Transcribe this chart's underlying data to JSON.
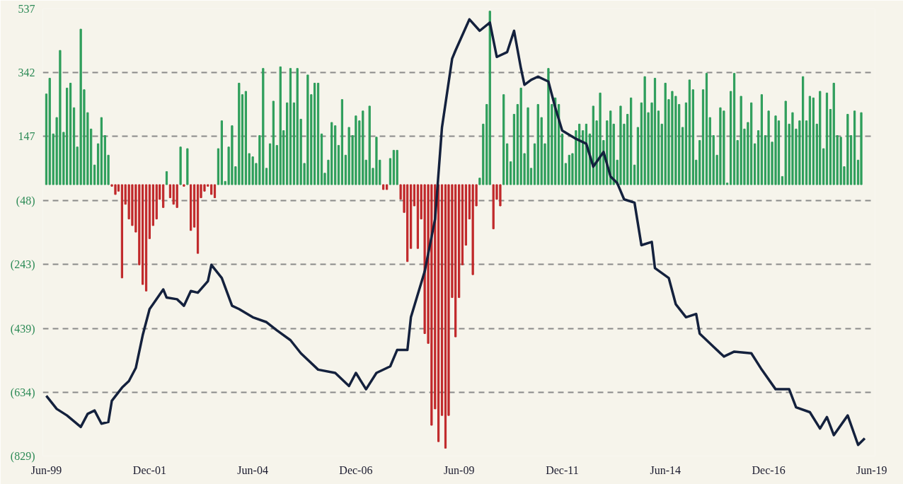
{
  "chart_data": {
    "type": "bar",
    "x": [
      "1999-06",
      "1999-07",
      "1999-08",
      "1999-09",
      "1999-10",
      "1999-11",
      "1999-12",
      "2000-01",
      "2000-02",
      "2000-03",
      "2000-04",
      "2000-05",
      "2000-06",
      "2000-07",
      "2000-08",
      "2000-09",
      "2000-10",
      "2000-11",
      "2000-12",
      "2001-01",
      "2001-02",
      "2001-03",
      "2001-04",
      "2001-05",
      "2001-06",
      "2001-07",
      "2001-08",
      "2001-09",
      "2001-10",
      "2001-11",
      "2001-12",
      "2002-01",
      "2002-02",
      "2002-03",
      "2002-04",
      "2002-05",
      "2002-06",
      "2002-07",
      "2002-08",
      "2002-09",
      "2002-10",
      "2002-11",
      "2002-12",
      "2003-01",
      "2003-02",
      "2003-03",
      "2003-04",
      "2003-05",
      "2003-06",
      "2003-07",
      "2003-08",
      "2003-09",
      "2003-10",
      "2003-11",
      "2003-12",
      "2004-01",
      "2004-02",
      "2004-03",
      "2004-04",
      "2004-05",
      "2004-06",
      "2004-07",
      "2004-08",
      "2004-09",
      "2004-10",
      "2004-11",
      "2004-12",
      "2005-01",
      "2005-02",
      "2005-03",
      "2005-04",
      "2005-05",
      "2005-06",
      "2005-07",
      "2005-08",
      "2005-09",
      "2005-10",
      "2005-11",
      "2005-12",
      "2006-01",
      "2006-02",
      "2006-03",
      "2006-04",
      "2006-05",
      "2006-06",
      "2006-07",
      "2006-08",
      "2006-09",
      "2006-10",
      "2006-11",
      "2006-12",
      "2007-01",
      "2007-02",
      "2007-03",
      "2007-04",
      "2007-05",
      "2007-06",
      "2007-07",
      "2007-08",
      "2007-09",
      "2007-10",
      "2007-11",
      "2007-12",
      "2008-01",
      "2008-02",
      "2008-03",
      "2008-04",
      "2008-05",
      "2008-06",
      "2008-07",
      "2008-08",
      "2008-09",
      "2008-10",
      "2008-11",
      "2008-12",
      "2009-01",
      "2009-02",
      "2009-03",
      "2009-04",
      "2009-05",
      "2009-06",
      "2009-07",
      "2009-08",
      "2009-09",
      "2009-10",
      "2009-11",
      "2009-12",
      "2010-01",
      "2010-02",
      "2010-03",
      "2010-04",
      "2010-05",
      "2010-06",
      "2010-07",
      "2010-08",
      "2010-09",
      "2010-10",
      "2010-11",
      "2010-12",
      "2011-01",
      "2011-02",
      "2011-03",
      "2011-04",
      "2011-05",
      "2011-06",
      "2011-07",
      "2011-08",
      "2011-09",
      "2011-10",
      "2011-11",
      "2011-12",
      "2012-01",
      "2012-02",
      "2012-03",
      "2012-04",
      "2012-05",
      "2012-06",
      "2012-07",
      "2012-08",
      "2012-09",
      "2012-10",
      "2012-11",
      "2012-12",
      "2013-01",
      "2013-02",
      "2013-03",
      "2013-04",
      "2013-05",
      "2013-06",
      "2013-07",
      "2013-08",
      "2013-09",
      "2013-10",
      "2013-11",
      "2013-12",
      "2014-01",
      "2014-02",
      "2014-03",
      "2014-04",
      "2014-05",
      "2014-06",
      "2014-07",
      "2014-08",
      "2014-09",
      "2014-10",
      "2014-11",
      "2014-12",
      "2015-01",
      "2015-02",
      "2015-03",
      "2015-04",
      "2015-05",
      "2015-06",
      "2015-07",
      "2015-08",
      "2015-09",
      "2015-10",
      "2015-11",
      "2015-12",
      "2016-01",
      "2016-02",
      "2016-03",
      "2016-04",
      "2016-05",
      "2016-06",
      "2016-07",
      "2016-08",
      "2016-09",
      "2016-10",
      "2016-11",
      "2016-12",
      "2017-01",
      "2017-02",
      "2017-03",
      "2017-04",
      "2017-05",
      "2017-06",
      "2017-07",
      "2017-08",
      "2017-09",
      "2017-10",
      "2017-11",
      "2017-12",
      "2018-01",
      "2018-02",
      "2018-03",
      "2018-04",
      "2018-05",
      "2018-06",
      "2018-07",
      "2018-08",
      "2018-09",
      "2018-10",
      "2018-11",
      "2018-12",
      "2019-01",
      "2019-02",
      "2019-03"
    ],
    "series": [
      {
        "values": [
          277,
          325,
          155,
          205,
          410,
          160,
          295,
          310,
          235,
          115,
          475,
          290,
          220,
          170,
          60,
          125,
          205,
          150,
          90,
          -5,
          -30,
          -20,
          -285,
          -60,
          -105,
          -125,
          -145,
          -245,
          -305,
          -325,
          -165,
          -125,
          -105,
          -45,
          -70,
          40,
          -40,
          -60,
          -70,
          115,
          -5,
          110,
          -140,
          -130,
          -210,
          -40,
          -20,
          -5,
          -30,
          -40,
          110,
          195,
          10,
          115,
          180,
          55,
          310,
          275,
          285,
          95,
          85,
          65,
          150,
          355,
          50,
          125,
          255,
          120,
          360,
          165,
          250,
          355,
          250,
          355,
          200,
          65,
          335,
          275,
          310,
          310,
          155,
          35,
          75,
          190,
          180,
          120,
          260,
          90,
          175,
          150,
          210,
          195,
          225,
          75,
          240,
          50,
          145,
          75,
          -15,
          -15,
          80,
          105,
          105,
          -45,
          -85,
          -235,
          -195,
          -65,
          -195,
          -105,
          -455,
          -485,
          -735,
          -685,
          -785,
          -705,
          -805,
          -705,
          -345,
          -465,
          -345,
          -245,
          -185,
          -105,
          -275,
          -65,
          20,
          185,
          245,
          530,
          -135,
          -45,
          -65,
          275,
          125,
          70,
          215,
          245,
          295,
          95,
          235,
          50,
          125,
          245,
          205,
          125,
          355,
          245,
          265,
          245,
          155,
          65,
          90,
          95,
          165,
          185,
          165,
          185,
          155,
          240,
          195,
          280,
          135,
          195,
          225,
          185,
          75,
          240,
          185,
          215,
          265,
          60,
          175,
          250,
          330,
          220,
          250,
          325,
          225,
          185,
          310,
          260,
          285,
          270,
          245,
          175,
          250,
          320,
          290,
          75,
          135,
          290,
          340,
          205,
          150,
          90,
          235,
          225,
          5,
          285,
          340,
          135,
          270,
          170,
          190,
          250,
          125,
          165,
          275,
          150,
          225,
          130,
          210,
          195,
          25,
          255,
          185,
          220,
          170,
          195,
          330,
          195,
          270,
          265,
          185,
          285,
          110,
          280,
          230,
          310,
          150,
          145,
          55,
          215,
          150,
          225,
          75,
          220
        ],
        "colors": [
          "#2e9e5b",
          "#2e9e5b",
          "#2e9e5b",
          "#2e9e5b",
          "#2e9e5b",
          "#2e9e5b",
          "#2e9e5b",
          "#2e9e5b",
          "#2e9e5b",
          "#2e9e5b",
          "#2e9e5b",
          "#2e9e5b",
          "#2e9e5b",
          "#2e9e5b",
          "#2e9e5b",
          "#2e9e5b",
          "#2e9e5b",
          "#2e9e5b",
          "#2e9e5b",
          "#c0282a",
          "#c0282a",
          "#c0282a",
          "#c0282a",
          "#c0282a",
          "#c0282a",
          "#c0282a",
          "#c0282a",
          "#c0282a",
          "#c0282a",
          "#c0282a",
          "#c0282a",
          "#c0282a",
          "#c0282a",
          "#c0282a",
          "#c0282a",
          "#2e9e5b",
          "#c0282a",
          "#c0282a",
          "#c0282a",
          "#2e9e5b",
          "#c0282a",
          "#2e9e5b",
          "#c0282a",
          "#c0282a",
          "#c0282a",
          "#c0282a",
          "#c0282a",
          "#c0282a",
          "#c0282a",
          "#c0282a",
          "#2e9e5b",
          "#2e9e5b",
          "#2e9e5b",
          "#2e9e5b",
          "#2e9e5b",
          "#2e9e5b",
          "#2e9e5b",
          "#2e9e5b",
          "#2e9e5b",
          "#2e9e5b",
          "#2e9e5b",
          "#2e9e5b",
          "#2e9e5b",
          "#2e9e5b",
          "#2e9e5b",
          "#2e9e5b",
          "#2e9e5b",
          "#2e9e5b",
          "#2e9e5b",
          "#2e9e5b",
          "#2e9e5b",
          "#2e9e5b",
          "#2e9e5b",
          "#2e9e5b",
          "#2e9e5b",
          "#2e9e5b",
          "#2e9e5b",
          "#2e9e5b",
          "#2e9e5b",
          "#2e9e5b",
          "#2e9e5b",
          "#2e9e5b",
          "#2e9e5b",
          "#2e9e5b",
          "#2e9e5b",
          "#2e9e5b",
          "#2e9e5b",
          "#2e9e5b",
          "#2e9e5b",
          "#2e9e5b",
          "#2e9e5b",
          "#2e9e5b",
          "#2e9e5b",
          "#2e9e5b",
          "#2e9e5b",
          "#2e9e5b",
          "#2e9e5b",
          "#2e9e5b",
          "#c0282a",
          "#c0282a",
          "#2e9e5b",
          "#2e9e5b",
          "#2e9e5b",
          "#c0282a",
          "#c0282a",
          "#c0282a",
          "#c0282a",
          "#c0282a",
          "#c0282a",
          "#c0282a",
          "#c0282a",
          "#c0282a",
          "#c0282a",
          "#c0282a",
          "#c0282a",
          "#c0282a",
          "#c0282a",
          "#c0282a",
          "#c0282a",
          "#c0282a",
          "#c0282a",
          "#c0282a",
          "#c0282a",
          "#c0282a",
          "#c0282a",
          "#c0282a",
          "#2e9e5b",
          "#2e9e5b",
          "#2e9e5b",
          "#2e9e5b",
          "#c0282a",
          "#c0282a",
          "#c0282a",
          "#2e9e5b",
          "#2e9e5b",
          "#2e9e5b",
          "#2e9e5b",
          "#2e9e5b",
          "#2e9e5b",
          "#2e9e5b",
          "#2e9e5b",
          "#2e9e5b",
          "#2e9e5b",
          "#2e9e5b",
          "#2e9e5b",
          "#2e9e5b",
          "#2e9e5b",
          "#2e9e5b",
          "#2e9e5b",
          "#2e9e5b",
          "#2e9e5b",
          "#2e9e5b",
          "#2e9e5b",
          "#2e9e5b",
          "#2e9e5b",
          "#2e9e5b",
          "#2e9e5b",
          "#2e9e5b",
          "#2e9e5b",
          "#2e9e5b",
          "#2e9e5b",
          "#2e9e5b",
          "#2e9e5b",
          "#2e9e5b",
          "#2e9e5b",
          "#2e9e5b",
          "#2e9e5b",
          "#2e9e5b",
          "#2e9e5b",
          "#2e9e5b",
          "#2e9e5b",
          "#2e9e5b",
          "#2e9e5b",
          "#2e9e5b",
          "#2e9e5b",
          "#2e9e5b",
          "#2e9e5b",
          "#2e9e5b",
          "#2e9e5b",
          "#2e9e5b",
          "#2e9e5b",
          "#2e9e5b",
          "#2e9e5b",
          "#2e9e5b",
          "#2e9e5b",
          "#2e9e5b",
          "#2e9e5b",
          "#2e9e5b",
          "#2e9e5b",
          "#2e9e5b",
          "#2e9e5b",
          "#2e9e5b",
          "#2e9e5b",
          "#2e9e5b",
          "#2e9e5b",
          "#2e9e5b",
          "#2e9e5b",
          "#2e9e5b",
          "#2e9e5b",
          "#2e9e5b",
          "#2e9e5b",
          "#2e9e5b",
          "#2e9e5b",
          "#2e9e5b",
          "#2e9e5b",
          "#2e9e5b",
          "#2e9e5b",
          "#2e9e5b",
          "#2e9e5b",
          "#2e9e5b",
          "#2e9e5b",
          "#2e9e5b",
          "#2e9e5b",
          "#2e9e5b",
          "#2e9e5b",
          "#2e9e5b",
          "#2e9e5b",
          "#2e9e5b",
          "#2e9e5b",
          "#2e9e5b",
          "#2e9e5b",
          "#2e9e5b",
          "#2e9e5b",
          "#2e9e5b",
          "#2e9e5b",
          "#2e9e5b",
          "#2e9e5b",
          "#2e9e5b",
          "#2e9e5b",
          "#2e9e5b",
          "#2e9e5b",
          "#2e9e5b",
          "#2e9e5b",
          "#2e9e5b",
          "#2e9e5b",
          "#2e9e5b",
          "#2e9e5b",
          "#2e9e5b"
        ]
      },
      {
        "type": "line",
        "color": "#14213d",
        "x": [
          "1999-06",
          "1999-09",
          "1999-12",
          "2000-04",
          "2000-06",
          "2000-08",
          "2000-10",
          "2000-12",
          "2001-01",
          "2001-04",
          "2001-06",
          "2001-08",
          "2001-10",
          "2001-12",
          "2002-01",
          "2002-04",
          "2002-05",
          "2002-08",
          "2002-10",
          "2002-12",
          "2003-02",
          "2003-05",
          "2003-06",
          "2003-09",
          "2003-12",
          "2004-02",
          "2004-06",
          "2004-10",
          "2005-01",
          "2005-05",
          "2005-08",
          "2006-01",
          "2006-06",
          "2006-10",
          "2006-12",
          "2007-03",
          "2007-06",
          "2007-10",
          "2007-12",
          "2008-03",
          "2008-04",
          "2008-08",
          "2008-11",
          "2009-01",
          "2009-04",
          "2009-05",
          "2009-09",
          "2009-12",
          "2010-03",
          "2010-05",
          "2010-08",
          "2010-10",
          "2010-12",
          "2011-01",
          "2011-03",
          "2011-05",
          "2011-08",
          "2011-10",
          "2011-12",
          "2012-04",
          "2012-07",
          "2012-09",
          "2012-12",
          "2013-02",
          "2013-04",
          "2013-06",
          "2013-09",
          "2013-11",
          "2014-02",
          "2014-03",
          "2014-07",
          "2014-09",
          "2014-12",
          "2015-03",
          "2015-04",
          "2015-08",
          "2015-11",
          "2016-02",
          "2016-07",
          "2016-10",
          "2017-02",
          "2017-06",
          "2017-08",
          "2017-12",
          "2018-03",
          "2018-05",
          "2018-07",
          "2018-11",
          "2019-02",
          "2019-04"
        ],
        "values": [
          -645,
          -685,
          -705,
          -740,
          -700,
          -690,
          -730,
          -725,
          -660,
          -620,
          -600,
          -560,
          -460,
          -380,
          -365,
          -320,
          -345,
          -350,
          -370,
          -325,
          -330,
          -295,
          -245,
          -285,
          -370,
          -380,
          -405,
          -420,
          -445,
          -475,
          -515,
          -565,
          -575,
          -615,
          -575,
          -625,
          -575,
          -555,
          -505,
          -505,
          -405,
          -265,
          -105,
          175,
          385,
          410,
          505,
          470,
          495,
          390,
          405,
          470,
          355,
          305,
          320,
          330,
          315,
          235,
          165,
          140,
          125,
          55,
          100,
          25,
          5,
          -45,
          -55,
          -185,
          -175,
          -255,
          -285,
          -365,
          -405,
          -395,
          -455,
          -495,
          -525,
          -510,
          -515,
          -565,
          -625,
          -625,
          -680,
          -695,
          -745,
          -710,
          -765,
          -705,
          -795,
          -775
        ]
      }
    ],
    "xlim": [
      "1999-05",
      "2019-07"
    ],
    "xticks": [
      {
        "value": "1999-06",
        "label": "Jun-99"
      },
      {
        "value": "2001-12",
        "label": "Dec-01"
      },
      {
        "value": "2004-06",
        "label": "Jun-04"
      },
      {
        "value": "2006-12",
        "label": "Dec-06"
      },
      {
        "value": "2009-06",
        "label": "Jun-09"
      },
      {
        "value": "2011-12",
        "label": "Dec-11"
      },
      {
        "value": "2014-06",
        "label": "Jun-14"
      },
      {
        "value": "2016-12",
        "label": "Dec-16"
      },
      {
        "value": "2019-06",
        "label": "Jun-19"
      }
    ],
    "ylim": [
      -829,
      537
    ],
    "yticks": [
      537,
      342,
      147,
      {
        "value": -48,
        "label": "(48)"
      },
      {
        "value": -243,
        "label": "(243)"
      },
      {
        "value": -439,
        "label": "(439)"
      },
      {
        "value": -634,
        "label": "(634)"
      },
      {
        "value": -829,
        "label": "(829)"
      }
    ],
    "grid": "y",
    "line_style": "solid"
  }
}
